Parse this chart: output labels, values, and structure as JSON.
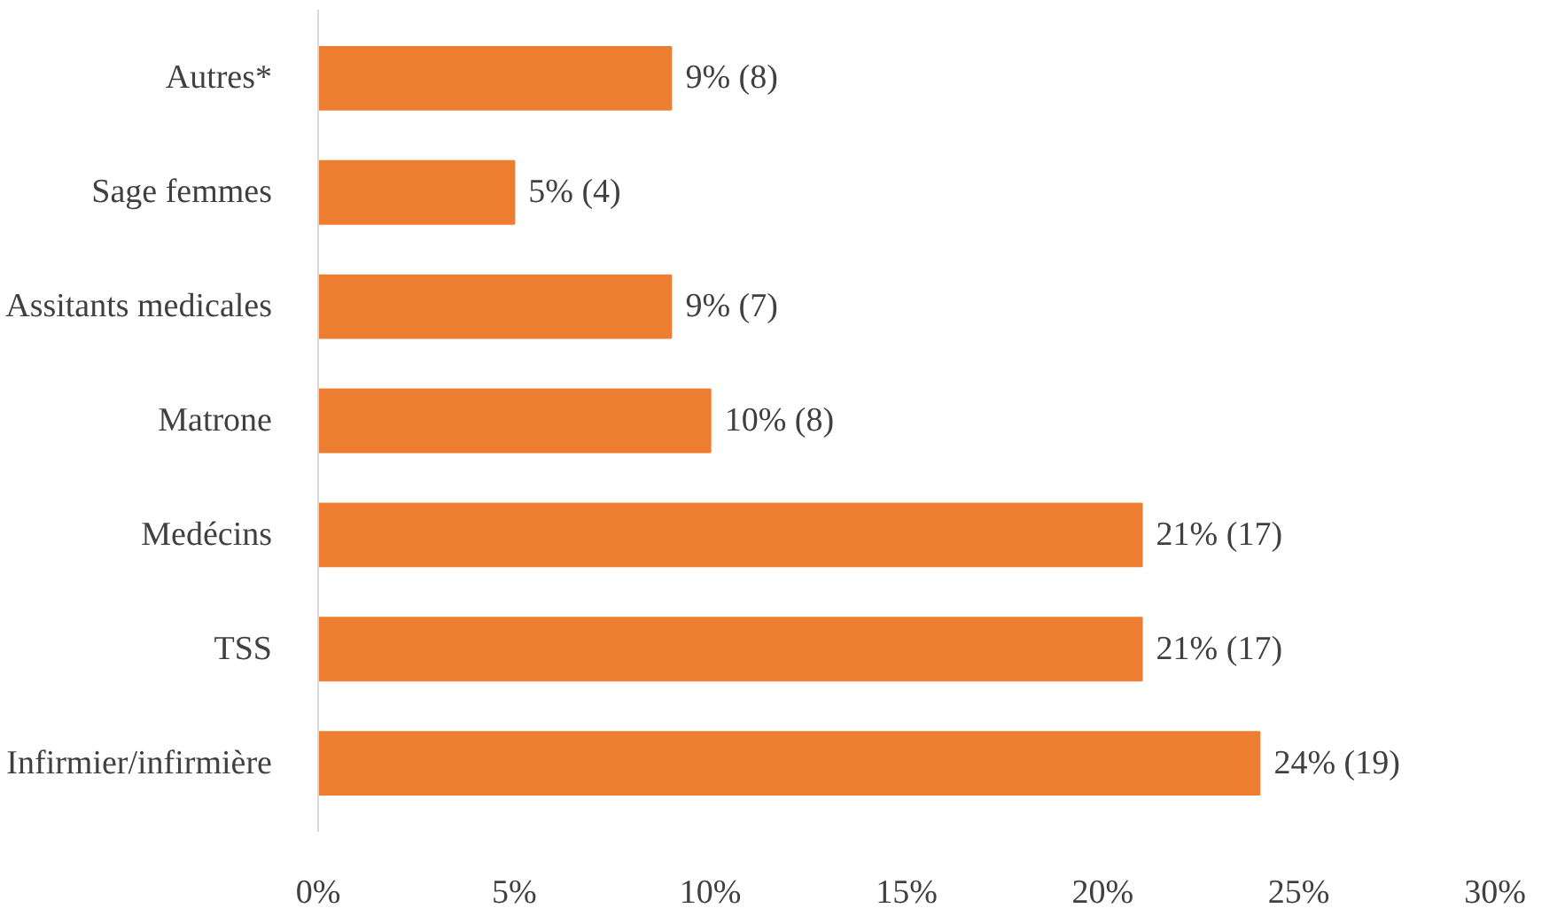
{
  "chart_data": {
    "type": "bar",
    "orientation": "horizontal",
    "categories": [
      "Autres*",
      "Sage femmes",
      "Assitants medicales",
      "Matrone",
      "Medécins",
      "TSS",
      "Infirmier/infirmière"
    ],
    "values": [
      9,
      5,
      9,
      10,
      21,
      21,
      24
    ],
    "value_labels": [
      "9% (8)",
      "5% (4)",
      "9% (7)",
      "10% (8)",
      "21% (17)",
      "21% (17)",
      "24% (19)"
    ],
    "color": "#ed7d31",
    "xlim": [
      0,
      30
    ],
    "xticks": [
      {
        "value": 0,
        "label": "0%"
      },
      {
        "value": 5,
        "label": "5%"
      },
      {
        "value": 10,
        "label": "10%"
      },
      {
        "value": 15,
        "label": "15%"
      },
      {
        "value": 20,
        "label": "20%"
      },
      {
        "value": 25,
        "label": "25%"
      },
      {
        "value": 30,
        "label": "30%"
      }
    ],
    "grid": false
  }
}
